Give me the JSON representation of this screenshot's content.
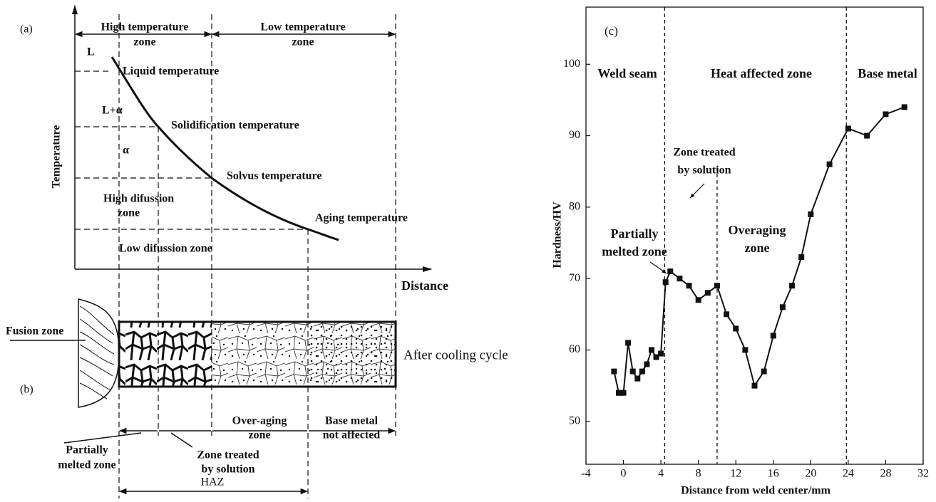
{
  "panel_a": {
    "label": "(a)",
    "y_axis_label": "Temperature",
    "x_axis_label": "Distance",
    "high_temperature_zone": [
      "High temperature",
      "zone"
    ],
    "low_temperature_zone": [
      "Low temperature",
      "zone"
    ],
    "phase_labels": [
      "L",
      "L+α",
      "α"
    ],
    "temperature_labels": [
      "Liquid temperature",
      "Solidification temperature",
      "Solvus temperature",
      "Aging temperature"
    ],
    "high_diffusion_zone": [
      "High difussion",
      "zone"
    ],
    "low_diffusion_zone": "Low difussion zone"
  },
  "panel_b": {
    "label": "(b)",
    "fusion_zone": "Fusion zone",
    "after_cooling": "After cooling cycle",
    "over_aging_zone": [
      "Over-aging",
      "zone"
    ],
    "base_metal": [
      "Base metal",
      "not affected"
    ],
    "partially_melted_zone": [
      "Partially",
      "melted zone"
    ],
    "zone_treated": [
      "Zone treated",
      "by solution"
    ],
    "haz": "HAZ"
  },
  "chart_data": {
    "type": "line",
    "panel_label": "(c)",
    "x_label": "Distance from weld center/mm",
    "y_label": "Hardness/HV",
    "x": [
      -1,
      -0.5,
      -0.25,
      0,
      0.5,
      1,
      1.5,
      2,
      2.5,
      3,
      3.5,
      4,
      4.5,
      5,
      6,
      7,
      8,
      9,
      10,
      11,
      12,
      13,
      14,
      15,
      16,
      17,
      18,
      19,
      20,
      22,
      24,
      26,
      28,
      30
    ],
    "values": [
      57,
      54,
      54,
      54,
      61,
      57,
      56,
      57,
      58,
      60,
      59,
      59.5,
      69.5,
      71,
      70,
      69,
      67,
      68,
      69,
      65,
      63,
      60,
      55,
      57,
      62,
      66,
      69,
      73,
      79,
      86,
      91,
      90,
      93,
      94
    ],
    "color": "#111111",
    "xlim": [
      -4,
      32
    ],
    "xticks": [
      -4,
      0,
      4,
      8,
      12,
      16,
      20,
      24,
      28,
      32
    ],
    "ylim": [
      44,
      108
    ],
    "yticks": [
      50,
      60,
      70,
      80,
      90,
      100
    ],
    "grid": false,
    "vlines": [
      4.4,
      10,
      23.8
    ],
    "annotations": [
      [
        "Weld seam"
      ],
      [
        "Heat affected zone"
      ],
      [
        "Base metal"
      ],
      [
        "Zone treated",
        "by solution"
      ],
      [
        "Partially",
        "melted zone"
      ],
      [
        "Overaging",
        "zone"
      ]
    ]
  }
}
